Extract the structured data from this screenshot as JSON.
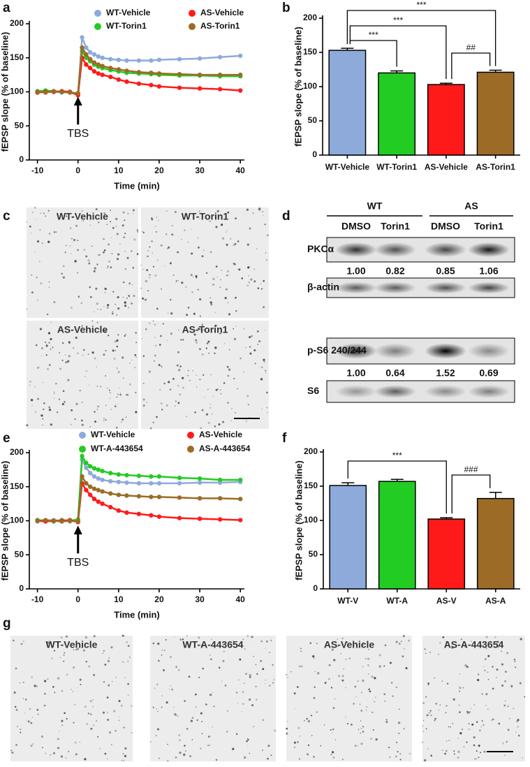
{
  "chart_data": [
    {
      "type": "line",
      "panel": "a",
      "xlabel": "Time (min)",
      "ylabel": "fEPSP slope (% of baseline)",
      "annotation": "TBS",
      "x": [
        -10,
        -8,
        -6,
        -4,
        -2,
        0,
        1,
        2,
        3,
        4,
        5,
        6,
        8,
        10,
        12,
        15,
        18,
        20,
        25,
        30,
        35,
        40
      ],
      "series": [
        {
          "name": "WT-Vehicle",
          "color": "#8eaadb",
          "values": [
            100,
            101,
            100,
            99,
            100,
            97,
            180,
            165,
            158,
            155,
            152,
            150,
            148,
            147,
            146,
            146,
            146,
            147,
            148,
            149,
            151,
            153
          ]
        },
        {
          "name": "WT-Torin1",
          "color": "#22cc22",
          "values": [
            101,
            102,
            101,
            100,
            99,
            96,
            160,
            150,
            145,
            140,
            137,
            135,
            132,
            130,
            128,
            127,
            126,
            125,
            124,
            124,
            123,
            123
          ]
        },
        {
          "name": "AS-Vehicle",
          "color": "#ff1a1a",
          "values": [
            99,
            100,
            100,
            101,
            100,
            95,
            150,
            140,
            135,
            130,
            127,
            125,
            122,
            118,
            115,
            112,
            110,
            108,
            106,
            105,
            104,
            102
          ]
        },
        {
          "name": "AS-Torin1",
          "color": "#9c6b26",
          "values": [
            100,
            99,
            101,
            100,
            99,
            98,
            165,
            155,
            148,
            143,
            140,
            138,
            135,
            133,
            131,
            129,
            128,
            127,
            126,
            125,
            125,
            125
          ]
        }
      ],
      "xlim": [
        -12,
        41
      ],
      "ylim": [
        0,
        200
      ],
      "xticks": [
        -10,
        0,
        10,
        20,
        30,
        40
      ],
      "yticks": [
        0,
        50,
        100,
        150,
        200
      ]
    },
    {
      "type": "bar",
      "panel": "b",
      "ylabel": "fEPSP slope (% of baseline)",
      "categories": [
        "WT-Vehicle",
        "WT-Torin1",
        "AS-Vehicle",
        "AS-Torin1"
      ],
      "values": [
        153,
        120,
        103,
        121
      ],
      "errors": [
        3,
        3,
        2,
        3
      ],
      "colors": [
        "#8eaadb",
        "#22cc22",
        "#ff1a1a",
        "#9c6b26"
      ],
      "ylim": [
        0,
        200
      ],
      "yticks": [
        0,
        50,
        100,
        150,
        200
      ],
      "annotations": [
        "***",
        "***",
        "***",
        "##"
      ]
    },
    {
      "type": "line",
      "panel": "e",
      "xlabel": "Time (min)",
      "ylabel": "fEPSP slope (% of baseline)",
      "annotation": "TBS",
      "x": [
        -10,
        -8,
        -6,
        -4,
        -2,
        0,
        1,
        2,
        3,
        4,
        5,
        6,
        8,
        10,
        12,
        15,
        18,
        20,
        25,
        30,
        35,
        40
      ],
      "series": [
        {
          "name": "WT-Vehicle",
          "color": "#8eaadb",
          "values": [
            99,
            100,
            101,
            100,
            99,
            100,
            190,
            178,
            170,
            165,
            162,
            160,
            158,
            157,
            156,
            155,
            155,
            155,
            155,
            156,
            156,
            157
          ]
        },
        {
          "name": "WT-A-443654",
          "color": "#22cc22",
          "values": [
            101,
            100,
            99,
            101,
            100,
            102,
            195,
            185,
            180,
            177,
            175,
            173,
            170,
            168,
            167,
            166,
            165,
            165,
            163,
            162,
            160,
            160
          ]
        },
        {
          "name": "AS-Vehicle",
          "color": "#ff1a1a",
          "values": [
            100,
            99,
            100,
            100,
            101,
            98,
            155,
            145,
            138,
            132,
            128,
            125,
            120,
            115,
            112,
            110,
            108,
            106,
            104,
            103,
            102,
            101
          ]
        },
        {
          "name": "AS-A-443654",
          "color": "#9c6b26",
          "values": [
            100,
            101,
            100,
            99,
            100,
            99,
            165,
            155,
            150,
            147,
            145,
            143,
            140,
            138,
            137,
            136,
            135,
            135,
            134,
            133,
            133,
            132
          ]
        }
      ],
      "xlim": [
        -12,
        41
      ],
      "ylim": [
        0,
        200
      ],
      "xticks": [
        -10,
        0,
        10,
        20,
        30,
        40
      ],
      "yticks": [
        0,
        50,
        100,
        150,
        200
      ]
    },
    {
      "type": "bar",
      "panel": "f",
      "ylabel": "fEPSP slope (% of baseline)",
      "categories": [
        "WT-V",
        "WT-A",
        "AS-V",
        "AS-A"
      ],
      "values": [
        151,
        157,
        102,
        132
      ],
      "errors": [
        4,
        3,
        2,
        9
      ],
      "colors": [
        "#8eaadb",
        "#22cc22",
        "#ff1a1a",
        "#9c6b26"
      ],
      "ylim": [
        0,
        200
      ],
      "yticks": [
        0,
        50,
        100,
        150,
        200
      ],
      "annotations": [
        "***",
        "###"
      ]
    }
  ],
  "blot": {
    "panel": "d",
    "groups": [
      "WT",
      "AS"
    ],
    "lanes": [
      "DMSO",
      "Torin1",
      "DMSO",
      "Torin1"
    ],
    "rows": [
      {
        "label": "PKCα",
        "quant": [
          "1.00",
          "0.82",
          "0.85",
          "1.06"
        ]
      },
      {
        "label": "β-actin"
      },
      {
        "label": "p-S6 240/244",
        "quant": [
          "1.00",
          "0.64",
          "1.52",
          "0.69"
        ]
      },
      {
        "label": "S6"
      }
    ]
  },
  "micrographs": [
    {
      "panel": "c",
      "labels": [
        "WT-Vehicle",
        "WT-Torin1",
        "AS-Vehicle",
        "AS-Torin1"
      ]
    },
    {
      "panel": "g",
      "labels": [
        "WT-Vehicle",
        "WT-A-443654",
        "AS-Vehicle",
        "AS-A-443654"
      ]
    }
  ]
}
